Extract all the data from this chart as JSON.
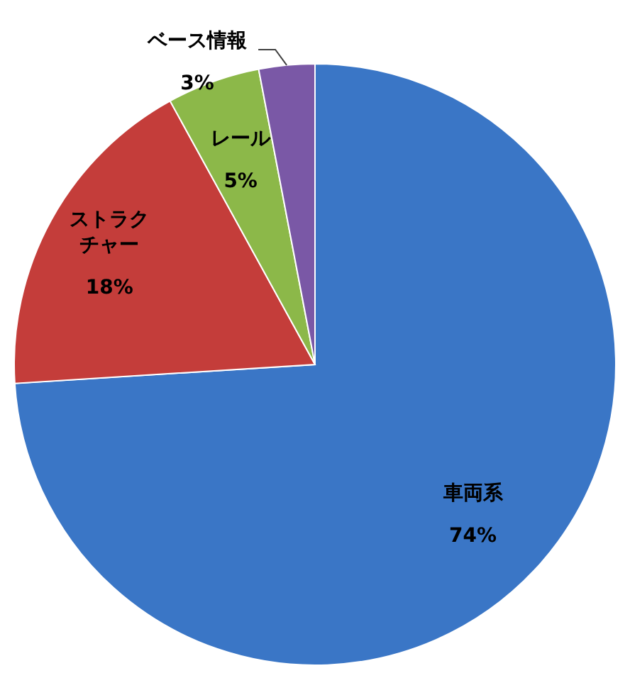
{
  "chart_data": {
    "type": "pie",
    "categories": [
      "車両系",
      "ストラクチャー",
      "レール",
      "ベース情報"
    ],
    "values": [
      74,
      18,
      5,
      3
    ],
    "colors": [
      "#3a76c6",
      "#c43d3a",
      "#8cb849",
      "#7a58a6"
    ],
    "value_labels": [
      "74%",
      "18%",
      "5%",
      "3%"
    ]
  }
}
